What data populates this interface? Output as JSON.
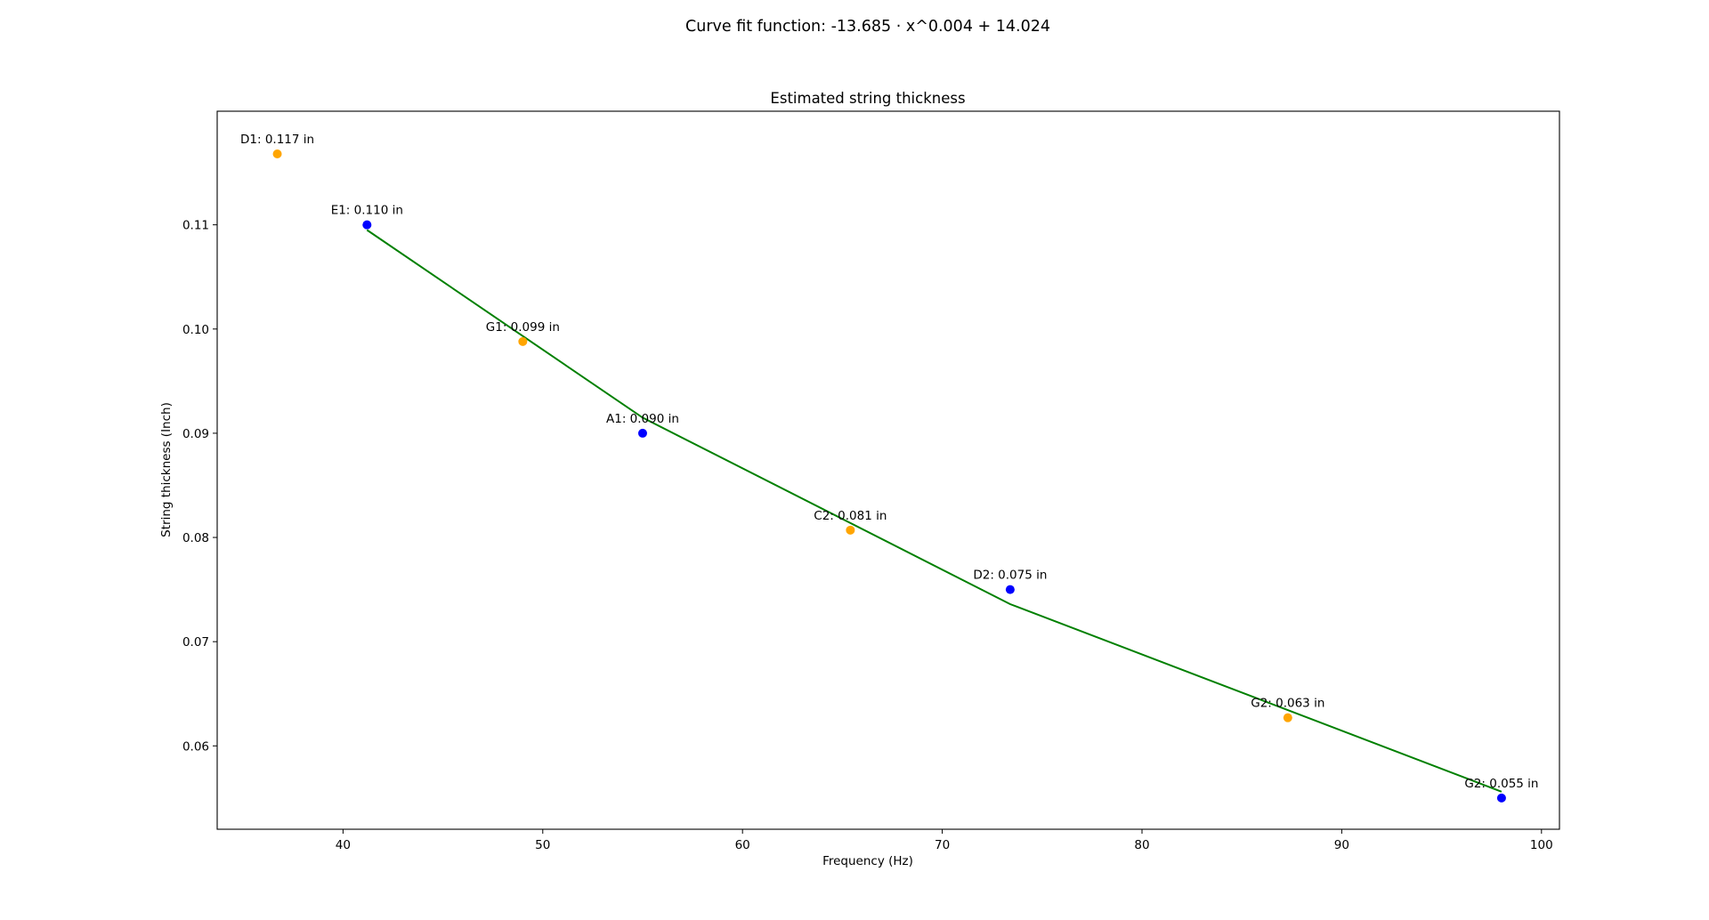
{
  "figure": {
    "suptitle": "Curve fit function: -13.685 · x^0.004 + 14.024"
  },
  "chart_data": {
    "type": "scatter",
    "title": "Estimated string thickness",
    "xlabel": "Frequency (Hz)",
    "ylabel": "String thickness (Inch)",
    "xlim": [
      33.7,
      100.9
    ],
    "ylim": [
      0.052,
      0.1209
    ],
    "xticks": [
      40,
      50,
      60,
      70,
      80,
      90,
      100
    ],
    "yticks": [
      0.06,
      0.07,
      0.08,
      0.09,
      0.1,
      0.11
    ],
    "ytick_labels": [
      "0.06",
      "0.07",
      "0.08",
      "0.09",
      "0.10",
      "0.11"
    ],
    "grid": false,
    "points": [
      {
        "label": "D1: 0.117 in",
        "x": 36.71,
        "y": 0.1168,
        "color": "#ffa500"
      },
      {
        "label": "E1: 0.110 in",
        "x": 41.2,
        "y": 0.11,
        "color": "#0000ff"
      },
      {
        "label": "G1: 0.099 in",
        "x": 49.0,
        "y": 0.0988,
        "color": "#ffa500"
      },
      {
        "label": "A1: 0.090 in",
        "x": 55.0,
        "y": 0.09,
        "color": "#0000ff"
      },
      {
        "label": "C2: 0.081 in",
        "x": 65.4,
        "y": 0.0807,
        "color": "#ffa500"
      },
      {
        "label": "D2: 0.075 in",
        "x": 73.4,
        "y": 0.075,
        "color": "#0000ff"
      },
      {
        "label": "G2: 0.063 in",
        "x": 87.3,
        "y": 0.0627,
        "color": "#ffa500"
      },
      {
        "label": "G2: 0.055 in",
        "x": 98.0,
        "y": 0.055,
        "color": "#0000ff"
      }
    ],
    "fit_line": {
      "color": "#008000",
      "x": [
        41.2,
        55.0,
        73.4,
        98.0
      ],
      "y": [
        0.1095,
        0.0915,
        0.0736,
        0.0556
      ]
    }
  }
}
